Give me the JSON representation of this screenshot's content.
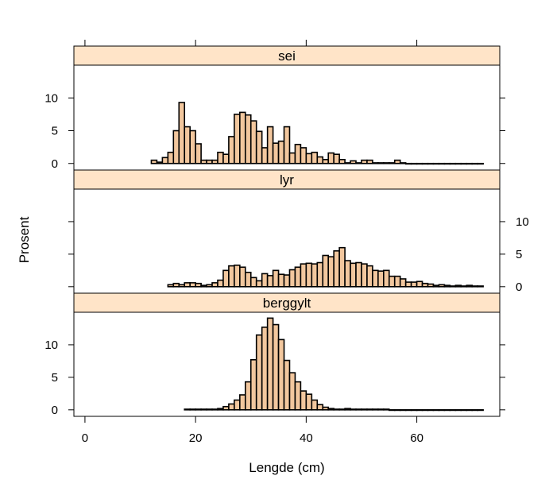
{
  "chart_data": {
    "type": "bar",
    "subtype": "lattice-histogram",
    "xlabel": "Lengde (cm)",
    "ylabel": "Prosent",
    "xlim": [
      -2,
      75
    ],
    "ylim": [
      -1,
      15
    ],
    "x_ticks": [
      "0",
      "20",
      "40",
      "60"
    ],
    "x_tick_values": [
      0,
      20,
      40,
      60
    ],
    "y_ticks": [
      "0",
      "5",
      "10"
    ],
    "y_tick_values": [
      0,
      5,
      10
    ],
    "bin_width": 1,
    "bar_color": "#f2c79e",
    "strip_color": "#ffe4c8",
    "panels": [
      {
        "name": "sei",
        "y_axis_side": "left",
        "x": [
          12,
          13,
          14,
          15,
          16,
          17,
          18,
          19,
          20,
          21,
          22,
          23,
          24,
          25,
          26,
          27,
          28,
          29,
          30,
          31,
          32,
          33,
          34,
          35,
          36,
          37,
          38,
          39,
          40,
          41,
          42,
          43,
          44,
          45,
          46,
          47,
          48,
          49,
          50,
          51,
          52,
          53,
          54,
          55,
          56,
          57,
          58,
          59,
          60,
          61,
          62,
          63,
          64,
          65,
          66,
          67,
          68,
          69,
          70,
          71
        ],
        "values": [
          0.5,
          0.2,
          0.9,
          1.7,
          5.0,
          9.3,
          5.6,
          5.0,
          3.0,
          0.5,
          0.5,
          0.5,
          1.7,
          1.4,
          4.1,
          7.5,
          7.8,
          7.4,
          6.5,
          4.9,
          2.4,
          5.6,
          3.1,
          3.4,
          5.6,
          1.6,
          2.9,
          2.4,
          1.5,
          1.7,
          1.0,
          0.6,
          1.6,
          1.4,
          0.6,
          0.1,
          0.4,
          0.1,
          0.5,
          0.5,
          0.1,
          0.1,
          0.1,
          0.1,
          0.5,
          0.1,
          0,
          0,
          0,
          0,
          0,
          0,
          0,
          0,
          0,
          0,
          0,
          0,
          0,
          0
        ]
      },
      {
        "name": "lyr",
        "y_axis_side": "right",
        "x": [
          15,
          16,
          17,
          18,
          19,
          20,
          21,
          22,
          23,
          24,
          25,
          26,
          27,
          28,
          29,
          30,
          31,
          32,
          33,
          34,
          35,
          36,
          37,
          38,
          39,
          40,
          41,
          42,
          43,
          44,
          45,
          46,
          47,
          48,
          49,
          50,
          51,
          52,
          53,
          54,
          55,
          56,
          57,
          58,
          59,
          60,
          61,
          62,
          63,
          64,
          65,
          66,
          67,
          68,
          69,
          70,
          71
        ],
        "values": [
          0.3,
          0.5,
          0.3,
          0.6,
          0.6,
          0.5,
          0.2,
          0.3,
          0.6,
          1.0,
          2.5,
          3.2,
          3.3,
          3.0,
          2.2,
          1.4,
          0.9,
          2.0,
          1.7,
          2.5,
          1.9,
          1.8,
          2.6,
          3.0,
          3.5,
          3.6,
          3.5,
          3.7,
          4.8,
          4.6,
          5.5,
          6.0,
          4.0,
          3.6,
          3.7,
          3.5,
          3.2,
          2.5,
          2.4,
          2.5,
          1.6,
          1.6,
          1.2,
          0.7,
          0.7,
          0.8,
          0.5,
          0.4,
          0.2,
          0.3,
          0.2,
          0.1,
          0.2,
          0.1,
          0.2,
          0.1,
          0.1
        ]
      },
      {
        "name": "berggylt",
        "y_axis_side": "left",
        "x": [
          18,
          19,
          20,
          21,
          22,
          23,
          24,
          25,
          26,
          27,
          28,
          29,
          30,
          31,
          32,
          33,
          34,
          35,
          36,
          37,
          38,
          39,
          40,
          41,
          42,
          43,
          44,
          45,
          46,
          47,
          48,
          49,
          50,
          51,
          52,
          53,
          54,
          55,
          56,
          57,
          58,
          59,
          60,
          61,
          62,
          63,
          64,
          65,
          66,
          67,
          68,
          69,
          70,
          71
        ],
        "values": [
          0.1,
          0.1,
          0.1,
          0.1,
          0.1,
          0.1,
          0.2,
          0.5,
          0.9,
          1.5,
          2.3,
          4.3,
          7.7,
          11.5,
          12.7,
          14.1,
          13.1,
          10.8,
          7.6,
          5.7,
          4.3,
          2.9,
          2.4,
          1.5,
          0.8,
          0.4,
          0.2,
          0.1,
          0.1,
          0.2,
          0.1,
          0.1,
          0.1,
          0.1,
          0.1,
          0.1,
          0.1,
          0,
          0,
          0,
          0,
          0,
          0,
          0,
          0,
          0,
          0,
          0,
          0,
          0,
          0,
          0,
          0,
          0
        ]
      }
    ]
  }
}
